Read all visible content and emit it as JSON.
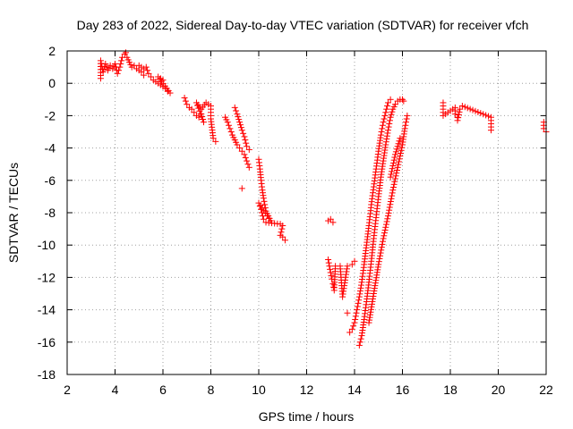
{
  "chart_data": {
    "type": "scatter",
    "title": "Day 283 of 2022, Sidereal Day-to-day VTEC variation (SDTVAR) for receiver vfch",
    "xlabel": "GPS time / hours",
    "ylabel": "SDTVAR / TECUs",
    "xlim": [
      2,
      22
    ],
    "ylim": [
      -18,
      2
    ],
    "xticks": [
      2,
      4,
      6,
      8,
      10,
      12,
      14,
      16,
      18,
      20,
      22
    ],
    "yticks": [
      2,
      0,
      -2,
      -4,
      -6,
      -8,
      -10,
      -12,
      -14,
      -16,
      -18
    ],
    "xtick_labels": [
      "2",
      "4",
      "6",
      "8",
      "10",
      "12",
      "14",
      "16",
      "18",
      "20",
      "22"
    ],
    "ytick_labels": [
      "2",
      "0",
      "-2",
      "-4",
      "-6",
      "-8",
      "-10",
      "-12",
      "-14",
      "-16",
      "-18"
    ],
    "grid": true,
    "marker": "+",
    "color": "#ff0000",
    "series": [
      {
        "name": "arc1",
        "points": [
          [
            3.4,
            0.3
          ],
          [
            3.4,
            1.4
          ],
          [
            3.5,
            0.7
          ],
          [
            3.6,
            1.2
          ],
          [
            3.7,
            0.8
          ],
          [
            3.8,
            1.1
          ],
          [
            3.9,
            0.9
          ],
          [
            4.0,
            1.2
          ],
          [
            4.1,
            0.6
          ],
          [
            4.2,
            1.0
          ],
          [
            4.3,
            1.6
          ],
          [
            4.4,
            1.8
          ],
          [
            4.45,
            1.9
          ],
          [
            4.5,
            1.6
          ],
          [
            4.6,
            1.3
          ],
          [
            4.7,
            1.0
          ],
          [
            4.8,
            1.1
          ],
          [
            4.9,
            0.9
          ],
          [
            5.0,
            0.8
          ],
          [
            5.1,
            0.7
          ],
          [
            5.2,
            0.5
          ]
        ]
      },
      {
        "name": "arc2",
        "points": [
          [
            5.0,
            1.1
          ],
          [
            5.2,
            0.9
          ],
          [
            5.3,
            1.0
          ],
          [
            5.4,
            0.6
          ],
          [
            5.5,
            0.4
          ],
          [
            5.6,
            0.2
          ],
          [
            5.7,
            0.1
          ],
          [
            5.8,
            0.0
          ],
          [
            5.9,
            -0.1
          ],
          [
            6.0,
            -0.2
          ],
          [
            6.1,
            -0.3
          ],
          [
            6.2,
            -0.5
          ],
          [
            6.3,
            -0.6
          ],
          [
            5.8,
            0.4
          ],
          [
            6.0,
            0.2
          ]
        ]
      },
      {
        "name": "arc3",
        "points": [
          [
            6.9,
            -0.9
          ],
          [
            7.0,
            -1.3
          ],
          [
            7.1,
            -1.5
          ],
          [
            7.2,
            -1.6
          ],
          [
            7.3,
            -1.8
          ],
          [
            7.4,
            -2.0
          ],
          [
            7.5,
            -2.1
          ],
          [
            7.6,
            -1.9
          ],
          [
            7.7,
            -2.4
          ],
          [
            7.4,
            -1.2
          ],
          [
            7.6,
            -1.6
          ],
          [
            7.8,
            -1.2
          ],
          [
            8.0,
            -1.4
          ],
          [
            8.0,
            -2.2
          ],
          [
            8.1,
            -3.4
          ],
          [
            8.2,
            -3.6
          ]
        ]
      },
      {
        "name": "arc4",
        "points": [
          [
            8.6,
            -2.1
          ],
          [
            8.7,
            -2.4
          ],
          [
            8.8,
            -2.8
          ],
          [
            8.9,
            -3.2
          ],
          [
            9.0,
            -3.5
          ],
          [
            9.1,
            -3.8
          ],
          [
            9.2,
            -4.0
          ],
          [
            9.3,
            -4.2
          ],
          [
            9.4,
            -4.4
          ],
          [
            9.5,
            -4.8
          ],
          [
            9.6,
            -5.2
          ],
          [
            9.0,
            -1.5
          ],
          [
            9.1,
            -1.9
          ],
          [
            9.2,
            -2.4
          ],
          [
            9.3,
            -2.9
          ],
          [
            9.4,
            -3.3
          ],
          [
            9.5,
            -3.9
          ],
          [
            9.6,
            -4.1
          ],
          [
            9.3,
            -6.5
          ]
        ]
      },
      {
        "name": "arc5",
        "points": [
          [
            10.0,
            -4.7
          ],
          [
            10.05,
            -5.3
          ],
          [
            10.1,
            -6.0
          ],
          [
            10.15,
            -6.6
          ],
          [
            10.2,
            -7.1
          ],
          [
            10.25,
            -7.5
          ],
          [
            10.3,
            -7.9
          ],
          [
            10.4,
            -8.2
          ],
          [
            10.5,
            -8.5
          ],
          [
            10.0,
            -7.4
          ],
          [
            10.1,
            -7.8
          ],
          [
            10.2,
            -8.4
          ],
          [
            10.3,
            -8.6
          ],
          [
            10.9,
            -8.7
          ],
          [
            11.0,
            -8.8
          ],
          [
            10.9,
            -9.4
          ],
          [
            11.0,
            -9.5
          ],
          [
            11.1,
            -9.7
          ]
        ]
      },
      {
        "name": "arc6",
        "points": [
          [
            12.9,
            -8.5
          ],
          [
            13.0,
            -8.4
          ],
          [
            13.1,
            -8.6
          ],
          [
            12.9,
            -10.9
          ],
          [
            12.95,
            -11.3
          ],
          [
            13.0,
            -11.7
          ],
          [
            13.05,
            -12.1
          ],
          [
            13.1,
            -12.4
          ],
          [
            13.15,
            -12.8
          ],
          [
            13.2,
            -11.3
          ],
          [
            13.4,
            -11.3
          ],
          [
            13.5,
            -13.2
          ],
          [
            13.7,
            -11.3
          ],
          [
            13.9,
            -11.2
          ],
          [
            14.0,
            -11.0
          ],
          [
            13.7,
            -14.2
          ]
        ]
      },
      {
        "name": "arc7",
        "points": [
          [
            13.8,
            -15.4
          ],
          [
            13.9,
            -15.2
          ],
          [
            14.0,
            -14.8
          ],
          [
            14.1,
            -14.0
          ],
          [
            14.2,
            -13.2
          ],
          [
            14.3,
            -12.3
          ],
          [
            14.4,
            -11.2
          ],
          [
            14.5,
            -10.0
          ],
          [
            14.6,
            -8.8
          ],
          [
            14.7,
            -7.5
          ],
          [
            14.8,
            -6.4
          ],
          [
            14.9,
            -5.3
          ],
          [
            15.0,
            -4.2
          ],
          [
            15.1,
            -3.2
          ],
          [
            15.2,
            -2.4
          ],
          [
            15.3,
            -1.8
          ],
          [
            15.4,
            -1.2
          ],
          [
            15.5,
            -1.0
          ]
        ]
      },
      {
        "name": "arc8",
        "points": [
          [
            14.2,
            -16.2
          ],
          [
            14.3,
            -15.6
          ],
          [
            14.4,
            -14.6
          ],
          [
            14.5,
            -13.5
          ],
          [
            14.6,
            -12.3
          ],
          [
            14.7,
            -11.0
          ],
          [
            14.8,
            -9.6
          ],
          [
            14.9,
            -8.3
          ],
          [
            15.0,
            -7.0
          ],
          [
            15.1,
            -5.8
          ],
          [
            15.2,
            -4.8
          ],
          [
            15.3,
            -3.8
          ],
          [
            15.4,
            -2.9
          ],
          [
            15.5,
            -2.1
          ],
          [
            15.6,
            -1.6
          ],
          [
            15.7,
            -1.3
          ],
          [
            15.8,
            -1.1
          ],
          [
            15.9,
            -1.0
          ],
          [
            16.0,
            -1.0
          ],
          [
            16.05,
            -1.1
          ]
        ]
      },
      {
        "name": "arc9",
        "points": [
          [
            14.6,
            -14.8
          ],
          [
            14.8,
            -13.0
          ],
          [
            15.0,
            -11.2
          ],
          [
            15.2,
            -9.6
          ],
          [
            15.4,
            -8.2
          ],
          [
            15.6,
            -6.6
          ],
          [
            15.8,
            -5.2
          ],
          [
            16.0,
            -3.8
          ],
          [
            16.1,
            -2.8
          ],
          [
            16.2,
            -2.0
          ],
          [
            15.5,
            -5.8
          ],
          [
            15.7,
            -4.4
          ],
          [
            15.9,
            -3.4
          ]
        ]
      },
      {
        "name": "arc10",
        "points": [
          [
            17.7,
            -1.2
          ],
          [
            17.7,
            -2.0
          ],
          [
            18.2,
            -1.5
          ],
          [
            18.2,
            -1.9
          ],
          [
            18.3,
            -2.1
          ],
          [
            18.3,
            -2.3
          ],
          [
            18.4,
            -1.6
          ],
          [
            18.5,
            -1.4
          ],
          [
            19.7,
            -2.1
          ],
          [
            19.7,
            -2.7
          ],
          [
            19.7,
            -2.9
          ],
          [
            21.9,
            -2.4
          ],
          [
            21.9,
            -2.8
          ],
          [
            22.0,
            -3.0
          ]
        ]
      }
    ]
  }
}
